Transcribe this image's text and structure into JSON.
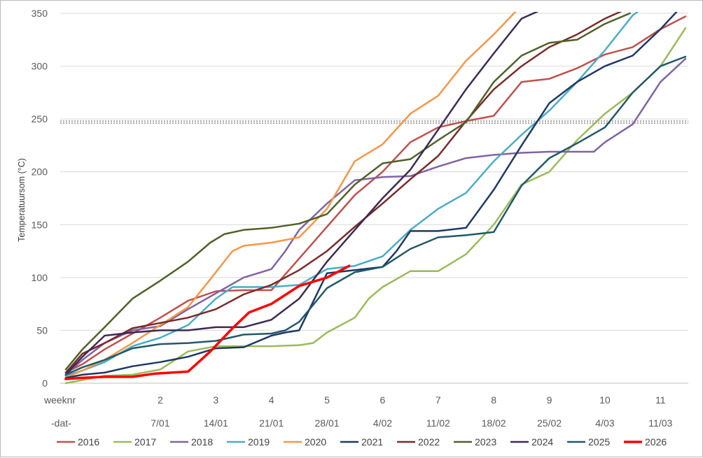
{
  "chart_data": {
    "type": "line",
    "title": "",
    "ylabel": "Temperatuursom (°C)",
    "ylim": [
      0,
      350
    ],
    "yticks": [
      0,
      50,
      100,
      150,
      200,
      250,
      300,
      350
    ],
    "xlim": [
      0.2,
      11.5
    ],
    "grid": true,
    "legend_position": "bottom",
    "week_row_label": "weeknr",
    "date_row_label": "-dat-",
    "week_ticks": [
      {
        "x": 2,
        "label": "2"
      },
      {
        "x": 3,
        "label": "3"
      },
      {
        "x": 4,
        "label": "4"
      },
      {
        "x": 5,
        "label": "5"
      },
      {
        "x": 6,
        "label": "6"
      },
      {
        "x": 7,
        "label": "7"
      },
      {
        "x": 8,
        "label": "8"
      },
      {
        "x": 9,
        "label": "9"
      },
      {
        "x": 10,
        "label": "10"
      },
      {
        "x": 11,
        "label": "11"
      }
    ],
    "date_ticks": [
      {
        "x": 2,
        "label": "7/01"
      },
      {
        "x": 3,
        "label": "14/01"
      },
      {
        "x": 4,
        "label": "21/01"
      },
      {
        "x": 5,
        "label": "28/01"
      },
      {
        "x": 6,
        "label": "4/02"
      },
      {
        "x": 7,
        "label": "11/02"
      },
      {
        "x": 8,
        "label": "18/02"
      },
      {
        "x": 9,
        "label": "25/02"
      },
      {
        "x": 10,
        "label": "4/03"
      },
      {
        "x": 11,
        "label": "11/03"
      }
    ],
    "threshold_line": {
      "y": 247,
      "style": "dotted"
    },
    "series": [
      {
        "name": "2016",
        "color": "#c0504d",
        "width": 2.5,
        "points": [
          [
            0.3,
            10
          ],
          [
            0.6,
            18
          ],
          [
            1,
            32
          ],
          [
            1.5,
            47
          ],
          [
            2,
            62
          ],
          [
            2.5,
            78
          ],
          [
            3,
            87
          ],
          [
            3.5,
            88
          ],
          [
            4,
            88
          ],
          [
            4.5,
            118
          ],
          [
            5,
            148
          ],
          [
            5.5,
            178
          ],
          [
            6,
            200
          ],
          [
            6.5,
            228
          ],
          [
            7,
            242
          ],
          [
            7.5,
            248
          ],
          [
            8,
            253
          ],
          [
            8.5,
            285
          ],
          [
            9,
            288
          ],
          [
            9.5,
            298
          ],
          [
            10,
            311
          ],
          [
            10.5,
            318
          ],
          [
            11,
            335
          ],
          [
            11.45,
            347
          ]
        ]
      },
      {
        "name": "2017",
        "color": "#9bbb59",
        "width": 2.5,
        "points": [
          [
            0.3,
            0
          ],
          [
            0.6,
            3
          ],
          [
            1,
            7
          ],
          [
            1.5,
            8
          ],
          [
            2,
            13
          ],
          [
            2.5,
            30
          ],
          [
            3,
            35
          ],
          [
            3.5,
            35
          ],
          [
            4,
            35
          ],
          [
            4.5,
            36
          ],
          [
            4.75,
            38
          ],
          [
            5,
            48
          ],
          [
            5.5,
            62
          ],
          [
            5.75,
            80
          ],
          [
            6,
            91
          ],
          [
            6.5,
            106
          ],
          [
            7,
            106
          ],
          [
            7.5,
            122
          ],
          [
            8,
            150
          ],
          [
            8.5,
            188
          ],
          [
            9,
            200
          ],
          [
            9.5,
            230
          ],
          [
            10,
            255
          ],
          [
            10.5,
            275
          ],
          [
            11,
            300
          ],
          [
            11.45,
            336
          ]
        ]
      },
      {
        "name": "2018",
        "color": "#8064a2",
        "width": 2.5,
        "points": [
          [
            0.3,
            8
          ],
          [
            0.6,
            22
          ],
          [
            1,
            38
          ],
          [
            1.5,
            50
          ],
          [
            2,
            54
          ],
          [
            2.5,
            70
          ],
          [
            3,
            85
          ],
          [
            3.5,
            100
          ],
          [
            4,
            108
          ],
          [
            4.25,
            125
          ],
          [
            4.5,
            145
          ],
          [
            5,
            170
          ],
          [
            5.5,
            192
          ],
          [
            6,
            195
          ],
          [
            6.5,
            196
          ],
          [
            7,
            205
          ],
          [
            7.5,
            213
          ],
          [
            8,
            216
          ],
          [
            8.5,
            218
          ],
          [
            9,
            219
          ],
          [
            9.5,
            219
          ],
          [
            9.8,
            219
          ],
          [
            10,
            228
          ],
          [
            10.5,
            245
          ],
          [
            11,
            285
          ],
          [
            11.45,
            307
          ]
        ]
      },
      {
        "name": "2019",
        "color": "#4bacc6",
        "width": 2.5,
        "points": [
          [
            0.3,
            7
          ],
          [
            0.6,
            12
          ],
          [
            1,
            20
          ],
          [
            1.5,
            35
          ],
          [
            2,
            43
          ],
          [
            2.5,
            55
          ],
          [
            3,
            80
          ],
          [
            3.3,
            91
          ],
          [
            3.5,
            91
          ],
          [
            4,
            91
          ],
          [
            4.5,
            93
          ],
          [
            5,
            108
          ],
          [
            5.5,
            111
          ],
          [
            6,
            120
          ],
          [
            6.5,
            145
          ],
          [
            7,
            165
          ],
          [
            7.5,
            180
          ],
          [
            8,
            210
          ],
          [
            8.5,
            235
          ],
          [
            9,
            258
          ],
          [
            9.5,
            285
          ],
          [
            10,
            315
          ],
          [
            10.5,
            348
          ],
          [
            10.6,
            352
          ]
        ]
      },
      {
        "name": "2020",
        "color": "#f79646",
        "width": 2.5,
        "points": [
          [
            0.3,
            5
          ],
          [
            0.6,
            12
          ],
          [
            1,
            22
          ],
          [
            1.5,
            38
          ],
          [
            2,
            55
          ],
          [
            2.5,
            72
          ],
          [
            3,
            105
          ],
          [
            3.3,
            125
          ],
          [
            3.5,
            130
          ],
          [
            4,
            133
          ],
          [
            4.5,
            138
          ],
          [
            5,
            165
          ],
          [
            5.5,
            210
          ],
          [
            6,
            226
          ],
          [
            6.5,
            255
          ],
          [
            7,
            272
          ],
          [
            7.5,
            305
          ],
          [
            8,
            330
          ],
          [
            8.4,
            352
          ]
        ]
      },
      {
        "name": "2021",
        "color": "#1f3864",
        "width": 2.5,
        "points": [
          [
            0.3,
            5
          ],
          [
            0.6,
            8
          ],
          [
            1,
            10
          ],
          [
            1.5,
            16
          ],
          [
            2,
            20
          ],
          [
            2.5,
            25
          ],
          [
            3,
            33
          ],
          [
            3.5,
            34
          ],
          [
            4,
            45
          ],
          [
            4.25,
            48
          ],
          [
            4.5,
            50
          ],
          [
            5,
            104
          ],
          [
            5.5,
            107
          ],
          [
            6,
            110
          ],
          [
            6.25,
            125
          ],
          [
            6.5,
            144
          ],
          [
            7,
            144
          ],
          [
            7.5,
            147
          ],
          [
            8,
            183
          ],
          [
            8.5,
            225
          ],
          [
            9,
            265
          ],
          [
            9.5,
            285
          ],
          [
            10,
            300
          ],
          [
            10.5,
            310
          ],
          [
            11,
            335
          ],
          [
            11.3,
            352
          ]
        ]
      },
      {
        "name": "2022",
        "color": "#7b2a2a",
        "width": 2.5,
        "points": [
          [
            0.3,
            10
          ],
          [
            0.6,
            28
          ],
          [
            1,
            38
          ],
          [
            1.5,
            52
          ],
          [
            2,
            57
          ],
          [
            2.5,
            62
          ],
          [
            3,
            70
          ],
          [
            3.5,
            84
          ],
          [
            4,
            93
          ],
          [
            4.5,
            107
          ],
          [
            5,
            125
          ],
          [
            5.5,
            148
          ],
          [
            6,
            170
          ],
          [
            6.5,
            193
          ],
          [
            7,
            215
          ],
          [
            7.5,
            248
          ],
          [
            8,
            278
          ],
          [
            8.5,
            300
          ],
          [
            9,
            318
          ],
          [
            9.5,
            330
          ],
          [
            10,
            345
          ],
          [
            10.3,
            352
          ]
        ]
      },
      {
        "name": "2023",
        "color": "#4f6228",
        "width": 2.5,
        "points": [
          [
            0.3,
            13
          ],
          [
            0.6,
            32
          ],
          [
            1,
            53
          ],
          [
            1.5,
            80
          ],
          [
            2,
            97
          ],
          [
            2.5,
            115
          ],
          [
            2.9,
            133
          ],
          [
            3.15,
            141
          ],
          [
            3.5,
            145
          ],
          [
            4,
            147
          ],
          [
            4.5,
            151
          ],
          [
            5,
            160
          ],
          [
            5.5,
            188
          ],
          [
            6,
            208
          ],
          [
            6.5,
            212
          ],
          [
            7,
            230
          ],
          [
            7.5,
            247
          ],
          [
            8,
            285
          ],
          [
            8.5,
            310
          ],
          [
            9,
            322
          ],
          [
            9.5,
            325
          ],
          [
            10,
            340
          ],
          [
            10.45,
            350
          ]
        ]
      },
      {
        "name": "2024",
        "color": "#3d2a52",
        "width": 2.5,
        "points": [
          [
            0.3,
            8
          ],
          [
            0.6,
            25
          ],
          [
            1,
            45
          ],
          [
            1.5,
            48
          ],
          [
            2,
            50
          ],
          [
            2.5,
            50
          ],
          [
            3,
            53
          ],
          [
            3.5,
            53
          ],
          [
            4,
            60
          ],
          [
            4.5,
            80
          ],
          [
            5,
            115
          ],
          [
            5.5,
            145
          ],
          [
            6,
            175
          ],
          [
            6.5,
            202
          ],
          [
            7,
            240
          ],
          [
            7.5,
            278
          ],
          [
            8,
            312
          ],
          [
            8.5,
            345
          ],
          [
            8.8,
            352
          ]
        ]
      },
      {
        "name": "2025",
        "color": "#215968",
        "width": 2.5,
        "points": [
          [
            0.3,
            8
          ],
          [
            0.6,
            15
          ],
          [
            1,
            22
          ],
          [
            1.5,
            33
          ],
          [
            2,
            37
          ],
          [
            2.5,
            38
          ],
          [
            3,
            40
          ],
          [
            3.5,
            46
          ],
          [
            4,
            47
          ],
          [
            4.25,
            50
          ],
          [
            4.5,
            58
          ],
          [
            5,
            90
          ],
          [
            5.5,
            105
          ],
          [
            6,
            110
          ],
          [
            6.5,
            127
          ],
          [
            7,
            138
          ],
          [
            7.5,
            140
          ],
          [
            8,
            143
          ],
          [
            8.5,
            187
          ],
          [
            9,
            213
          ],
          [
            9.5,
            227
          ],
          [
            10,
            242
          ],
          [
            10.5,
            275
          ],
          [
            11,
            300
          ],
          [
            11.45,
            309
          ]
        ]
      },
      {
        "name": "2026",
        "color": "#ff0000",
        "width": 3.5,
        "points": [
          [
            0.3,
            4
          ],
          [
            0.6,
            5
          ],
          [
            1,
            6
          ],
          [
            1.5,
            6
          ],
          [
            1.9,
            9
          ],
          [
            2.5,
            11
          ],
          [
            2.9,
            30
          ],
          [
            3.3,
            52
          ],
          [
            3.6,
            67
          ],
          [
            4,
            75
          ],
          [
            4.5,
            92
          ],
          [
            5,
            100
          ],
          [
            5.4,
            111
          ]
        ]
      }
    ]
  }
}
